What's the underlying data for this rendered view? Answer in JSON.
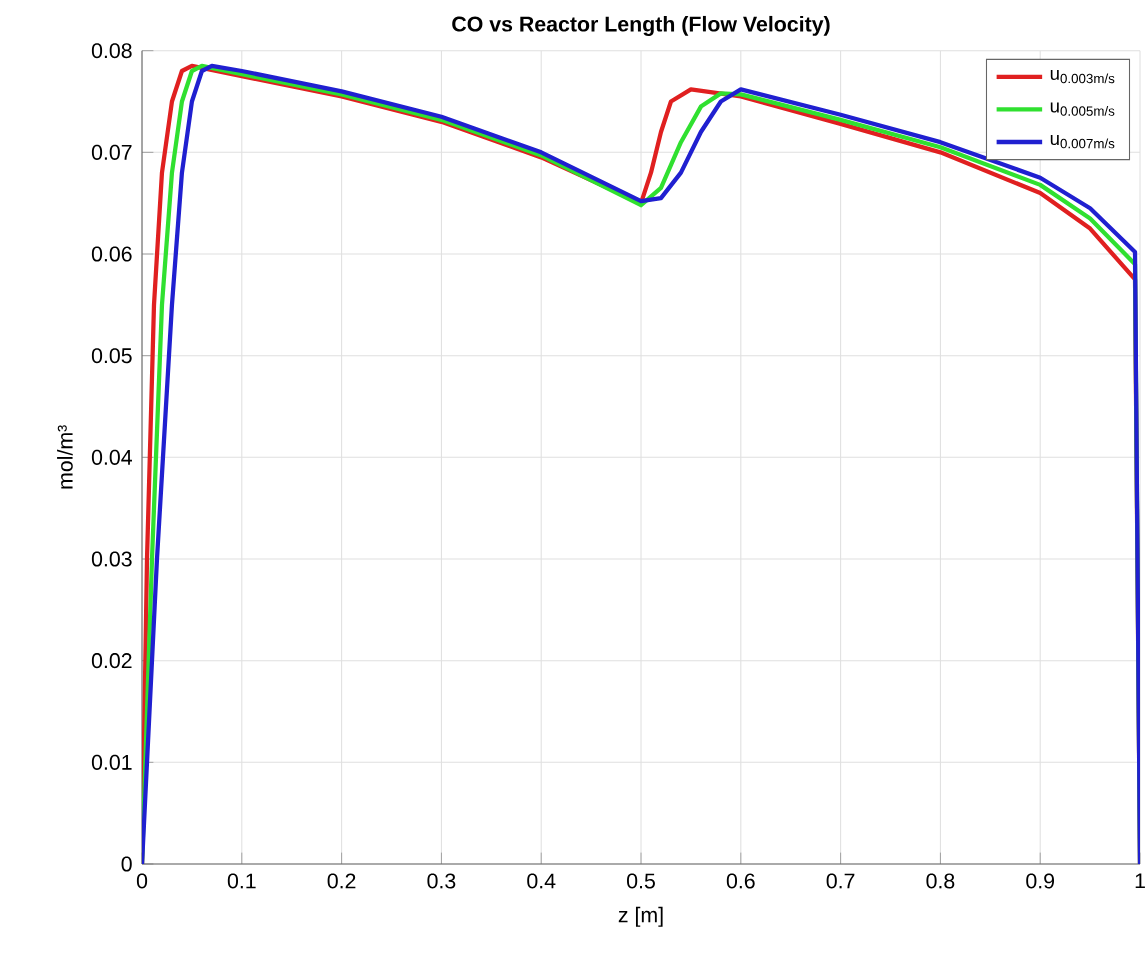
{
  "chart_data": {
    "type": "line",
    "title": "CO vs Reactor Length (Flow Velocity)",
    "xlabel": "z [m]",
    "ylabel": "mol/m³",
    "xlim": [
      0,
      1
    ],
    "ylim": [
      0,
      0.08
    ],
    "xticks": [
      0,
      0.1,
      0.2,
      0.3,
      0.4,
      0.5,
      0.6,
      0.7,
      0.8,
      0.9,
      1
    ],
    "yticks": [
      0,
      0.01,
      0.02,
      0.03,
      0.04,
      0.05,
      0.06,
      0.07,
      0.08
    ],
    "grid": true,
    "legend": "top right",
    "line_style": "solid",
    "marker": "none",
    "series": [
      {
        "name": "u$_{0.003m/s}$",
        "color": "#e02020",
        "x": [
          0,
          0.005,
          0.012,
          0.02,
          0.03,
          0.04,
          0.05,
          0.1,
          0.2,
          0.3,
          0.4,
          0.5,
          0.51,
          0.52,
          0.53,
          0.55,
          0.6,
          0.7,
          0.8,
          0.9,
          0.95,
          0.995,
          1
        ],
        "values": [
          0,
          0.03,
          0.055,
          0.068,
          0.075,
          0.078,
          0.0785,
          0.0775,
          0.0755,
          0.073,
          0.0695,
          0.065,
          0.068,
          0.072,
          0.075,
          0.0762,
          0.0755,
          0.0728,
          0.07,
          0.066,
          0.0625,
          0.0575,
          0
        ]
      },
      {
        "name": "u$_{0.005m/s}$",
        "color": "#30e030",
        "x": [
          0,
          0.01,
          0.02,
          0.03,
          0.04,
          0.05,
          0.06,
          0.1,
          0.2,
          0.3,
          0.4,
          0.5,
          0.52,
          0.54,
          0.56,
          0.58,
          0.6,
          0.7,
          0.8,
          0.9,
          0.95,
          0.995,
          1
        ],
        "values": [
          0,
          0.03,
          0.055,
          0.068,
          0.075,
          0.078,
          0.0785,
          0.0777,
          0.0757,
          0.0732,
          0.0697,
          0.0648,
          0.0665,
          0.071,
          0.0745,
          0.0758,
          0.0757,
          0.0732,
          0.0705,
          0.0668,
          0.0635,
          0.059,
          0
        ]
      },
      {
        "name": "u$_{0.007m/s}$",
        "color": "#2020d0",
        "x": [
          0,
          0.015,
          0.03,
          0.04,
          0.05,
          0.06,
          0.07,
          0.1,
          0.2,
          0.3,
          0.4,
          0.5,
          0.52,
          0.54,
          0.56,
          0.58,
          0.6,
          0.7,
          0.8,
          0.9,
          0.95,
          0.995,
          1
        ],
        "values": [
          0,
          0.03,
          0.055,
          0.068,
          0.075,
          0.078,
          0.0785,
          0.078,
          0.076,
          0.0735,
          0.07,
          0.0652,
          0.0655,
          0.068,
          0.072,
          0.075,
          0.0762,
          0.0737,
          0.071,
          0.0675,
          0.0645,
          0.0602,
          0
        ]
      }
    ]
  }
}
